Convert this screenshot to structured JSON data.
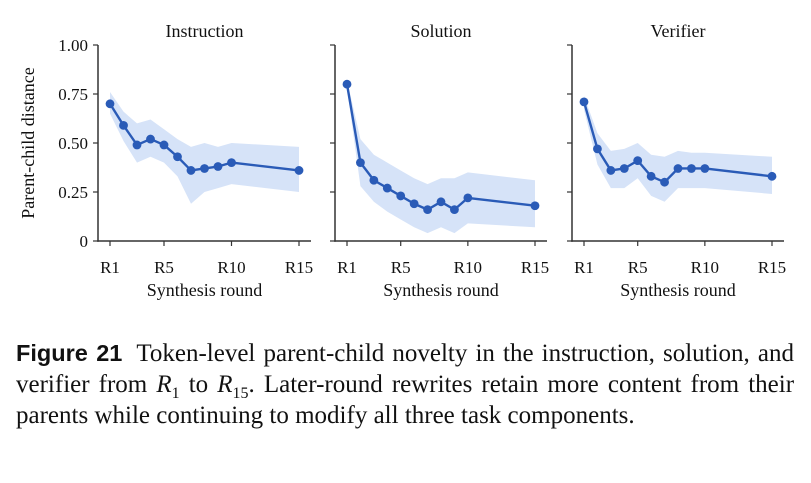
{
  "chart_data": [
    {
      "type": "line",
      "title": "Instruction",
      "xlabel": "Synthesis round",
      "ylabel": "Parent-child distance",
      "ylim": [
        0,
        1.0
      ],
      "xlim": [
        1,
        15
      ],
      "x": [
        1,
        2,
        3,
        4,
        5,
        6,
        7,
        8,
        9,
        10,
        15
      ],
      "xticks": [
        1,
        5,
        10,
        15
      ],
      "xtick_labels": [
        "R1",
        "R5",
        "R10",
        "R15"
      ],
      "yticks": [
        0,
        0.25,
        0.5,
        0.75,
        1.0
      ],
      "ytick_labels": [
        "0",
        "0.25",
        "0.50",
        "0.75",
        "1.00"
      ],
      "series": [
        {
          "values": [
            0.7,
            0.59,
            0.49,
            0.52,
            0.49,
            0.43,
            0.36,
            0.37,
            0.38,
            0.4,
            0.36
          ],
          "band_upper": [
            0.76,
            0.66,
            0.6,
            0.62,
            0.57,
            0.52,
            0.48,
            0.5,
            0.48,
            0.5,
            0.48
          ],
          "band_lower": [
            0.65,
            0.51,
            0.4,
            0.43,
            0.4,
            0.33,
            0.19,
            0.25,
            0.27,
            0.29,
            0.25
          ]
        }
      ],
      "grid": false
    },
    {
      "type": "line",
      "title": "Solution",
      "xlabel": "Synthesis round",
      "ylabel": "",
      "ylim": [
        0,
        1.0
      ],
      "xlim": [
        1,
        15
      ],
      "x": [
        1,
        2,
        3,
        4,
        5,
        6,
        7,
        8,
        9,
        10,
        15
      ],
      "xticks": [
        1,
        5,
        10,
        15
      ],
      "xtick_labels": [
        "R1",
        "R5",
        "R10",
        "R15"
      ],
      "series": [
        {
          "values": [
            0.8,
            0.4,
            0.31,
            0.27,
            0.23,
            0.19,
            0.16,
            0.2,
            0.16,
            0.22,
            0.18
          ],
          "band_upper": [
            0.82,
            0.52,
            0.44,
            0.4,
            0.36,
            0.32,
            0.29,
            0.32,
            0.32,
            0.35,
            0.31
          ],
          "band_lower": [
            0.78,
            0.28,
            0.2,
            0.15,
            0.11,
            0.07,
            0.04,
            0.07,
            0.04,
            0.09,
            0.07
          ]
        }
      ],
      "grid": false
    },
    {
      "type": "line",
      "title": "Verifier",
      "xlabel": "Synthesis round",
      "ylabel": "",
      "ylim": [
        0,
        1.0
      ],
      "xlim": [
        1,
        15
      ],
      "x": [
        1,
        2,
        3,
        4,
        5,
        6,
        7,
        8,
        9,
        10,
        15
      ],
      "xticks": [
        1,
        5,
        10,
        15
      ],
      "xtick_labels": [
        "R1",
        "R5",
        "R10",
        "R15"
      ],
      "series": [
        {
          "values": [
            0.71,
            0.47,
            0.36,
            0.37,
            0.41,
            0.33,
            0.3,
            0.37,
            0.37,
            0.37,
            0.33
          ],
          "band_upper": [
            0.74,
            0.55,
            0.46,
            0.47,
            0.5,
            0.44,
            0.43,
            0.46,
            0.45,
            0.45,
            0.43
          ],
          "band_lower": [
            0.67,
            0.39,
            0.27,
            0.27,
            0.32,
            0.23,
            0.2,
            0.27,
            0.27,
            0.27,
            0.24
          ]
        }
      ],
      "grid": false
    }
  ],
  "colors": {
    "line": "#2a5bb7",
    "band": "#d6e3f8",
    "axis": "#333333"
  },
  "caption": {
    "label": "Figure 21",
    "text_1": "Token-level parent-child novelty in the instruction, solution, and verifier from ",
    "r_start": "R",
    "r_start_sub": "1",
    "text_2": " to ",
    "r_end": "R",
    "r_end_sub": "15",
    "text_3": ". Later-round rewrites retain more content from their parents while continuing to modify all three task components."
  }
}
